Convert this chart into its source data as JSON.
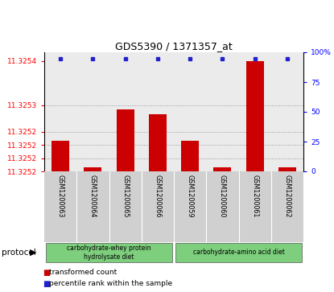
{
  "title": "GDS5390 / 1371357_at",
  "samples": [
    "GSM1200063",
    "GSM1200064",
    "GSM1200065",
    "GSM1200066",
    "GSM1200059",
    "GSM1200060",
    "GSM1200061",
    "GSM1200062"
  ],
  "transformed_counts": [
    11.32522,
    11.32516,
    11.32529,
    11.32528,
    11.32522,
    11.32516,
    11.3254,
    11.32516
  ],
  "percentile_ranks": [
    100,
    100,
    100,
    100,
    100,
    100,
    100,
    100
  ],
  "ylim_left": [
    11.32515,
    11.32542
  ],
  "ylim_right": [
    0,
    100
  ],
  "left_ytick_vals": [
    11.32515,
    11.32518,
    11.32521,
    11.32524,
    11.3253,
    11.3254
  ],
  "left_ytick_labels": [
    "11.3252",
    "11.3252",
    "11.3252",
    "11.3252",
    "11.3253",
    "11.3254"
  ],
  "grid_ytick_vals": [
    11.32518,
    11.32521,
    11.32524,
    11.3253
  ],
  "right_ytick_vals": [
    0,
    25,
    50,
    75,
    100
  ],
  "right_ytick_labels": [
    "0",
    "25",
    "50",
    "75",
    "100%"
  ],
  "groups": [
    {
      "label": "carbohydrate-whey protein\nhydrolysate diet",
      "start": 0,
      "end": 4
    },
    {
      "label": "carbohydrate-amino acid diet",
      "start": 4,
      "end": 8
    }
  ],
  "bar_color": "#cc0000",
  "dot_color": "#2222cc",
  "bar_width": 0.55,
  "protocol_label": "protocol",
  "legend_bar_label": "transformed count",
  "legend_dot_label": "percentile rank within the sample",
  "grid_color": "#888888",
  "plot_bg_color": "#ebebeb",
  "sample_bg_color": "#d0d0d0",
  "group_bg_color": "#7dce7d",
  "white": "#ffffff"
}
